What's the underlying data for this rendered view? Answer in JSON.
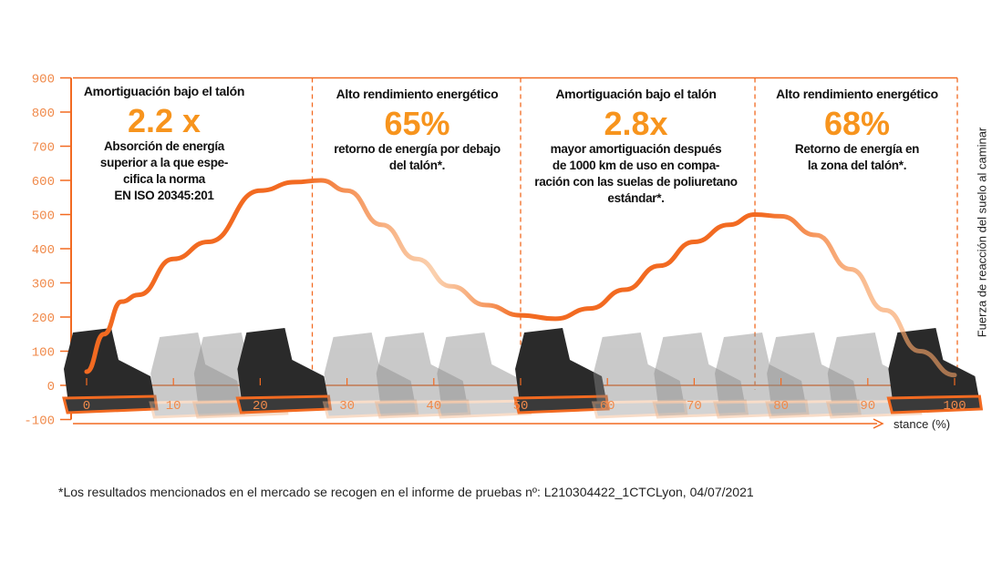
{
  "chart_data": {
    "type": "line",
    "title": "",
    "xlabel": "stance (%)",
    "ylabel": "Fuerza de reacción del suelo al caminar",
    "xlim": [
      0,
      100
    ],
    "ylim": [
      -100,
      900
    ],
    "x_ticks": [
      "0",
      "10",
      "20",
      "30",
      "40",
      "50",
      "60",
      "70",
      "80",
      "90",
      "100"
    ],
    "y_ticks": [
      "900",
      "800",
      "700",
      "600",
      "500",
      "400",
      "300",
      "200",
      "100",
      "0",
      "-100"
    ],
    "grid": false,
    "series": [
      {
        "name": "Fuerza de reacción",
        "color": "#f26a21",
        "x": [
          0,
          2,
          4,
          6,
          10,
          14,
          20,
          24,
          27,
          30,
          34,
          38,
          42,
          46,
          50,
          54,
          58,
          62,
          66,
          70,
          74,
          77,
          80,
          84,
          88,
          92,
          96,
          100
        ],
        "y": [
          40,
          150,
          245,
          265,
          370,
          420,
          570,
          595,
          600,
          570,
          470,
          370,
          290,
          235,
          205,
          195,
          225,
          280,
          350,
          420,
          470,
          500,
          495,
          440,
          340,
          220,
          100,
          30
        ]
      }
    ],
    "annotations": [
      {
        "heading": "Amortiguación bajo el talón",
        "value": "2.2 x",
        "text": [
          "Absorción de energía",
          "superior a la que espe-",
          "cifica la norma",
          "EN ISO 20345:201"
        ]
      },
      {
        "heading": "Alto rendimiento energético",
        "value": "65%",
        "text": [
          "retorno de energía por debajo",
          "del talón*."
        ]
      },
      {
        "heading": "Amortiguación bajo el talón",
        "value": "2.8x",
        "text": [
          "mayor amortiguación después",
          "de 1000 km de uso en compa-",
          "ración con las suelas de poliuretano",
          "estándar*."
        ]
      },
      {
        "heading": "Alto rendimiento energético",
        "value": "68%",
        "text": [
          "Retorno de energía en",
          "la zona del talón*."
        ]
      }
    ],
    "section_bounds": [
      0,
      26,
      50,
      77,
      100
    ]
  },
  "footnote": "*Los resultados mencionados en el mercado se recogen en el informe de pruebas nº: L210304422_1CTCLyon, 04/07/2021",
  "colors": {
    "accent": "#f26a21",
    "highlight": "#f7941d"
  }
}
